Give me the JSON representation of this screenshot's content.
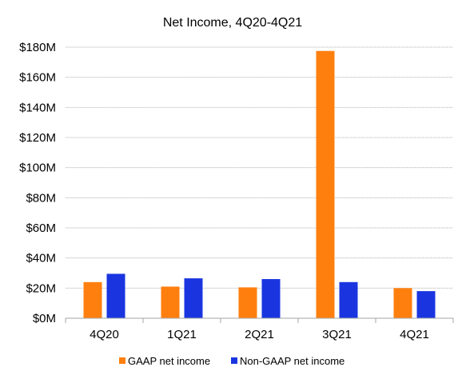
{
  "chart_data": {
    "type": "bar",
    "title": "Net Income, 4Q20-4Q21",
    "xlabel": "",
    "ylabel": "",
    "categories": [
      "4Q20",
      "1Q21",
      "2Q21",
      "3Q21",
      "4Q21"
    ],
    "series": [
      {
        "name": "GAAP net income",
        "color": "#FF7F0E",
        "values": [
          24,
          21,
          20.5,
          177.5,
          20
        ]
      },
      {
        "name": "Non-GAAP net income",
        "color": "#1A35E0",
        "values": [
          29.5,
          26.5,
          26,
          24,
          18
        ]
      }
    ],
    "ylim": [
      0,
      180
    ],
    "yticks": [
      0,
      20,
      40,
      60,
      80,
      100,
      120,
      140,
      160,
      180
    ],
    "ytick_labels": [
      "$0M",
      "$20M",
      "$40M",
      "$60M",
      "$80M",
      "$100M",
      "$120M",
      "$140M",
      "$160M",
      "$180M"
    ],
    "grid": true,
    "legend_position": "bottom"
  }
}
